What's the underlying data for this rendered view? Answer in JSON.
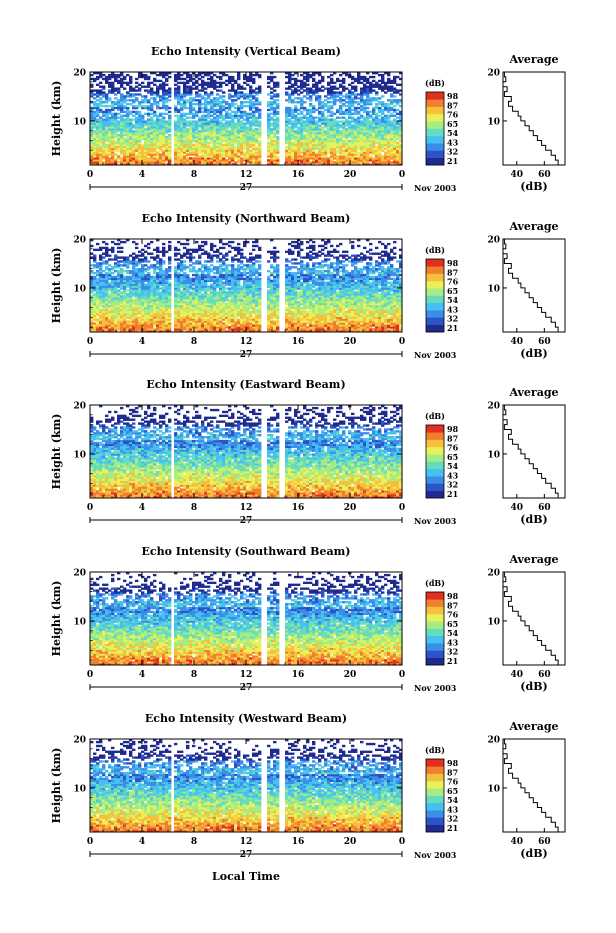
{
  "chart_data": [
    {
      "type": "heatmap",
      "title": "Echo Intensity (Vertical Beam)",
      "ylabel": "Height (km)",
      "y_ticks": [
        "20",
        "10"
      ],
      "x_ticks": [
        "0",
        "4",
        "8",
        "12",
        "16",
        "20",
        "0"
      ],
      "date_label": "27",
      "month_label": "Nov 2003",
      "colorbar": {
        "title": "(dB)",
        "labels": [
          "98",
          "87",
          "76",
          "65",
          "54",
          "43",
          "32",
          "21"
        ]
      },
      "profile": {
        "title": "Average",
        "y_ticks": [
          "20",
          "10"
        ],
        "x_ticks": [
          "40",
          "60"
        ],
        "xlabel": "(dB)"
      }
    },
    {
      "type": "heatmap",
      "title": "Echo Intensity (Northward Beam)",
      "ylabel": "Height (km)",
      "y_ticks": [
        "20",
        "10"
      ],
      "x_ticks": [
        "0",
        "4",
        "8",
        "12",
        "16",
        "20",
        "0"
      ],
      "date_label": "27",
      "month_label": "Nov 2003",
      "colorbar": {
        "title": "(dB)",
        "labels": [
          "98",
          "87",
          "76",
          "65",
          "54",
          "43",
          "32",
          "21"
        ]
      },
      "profile": {
        "title": "Average",
        "y_ticks": [
          "20",
          "10"
        ],
        "x_ticks": [
          "40",
          "60"
        ],
        "xlabel": "(dB)"
      }
    },
    {
      "type": "heatmap",
      "title": "Echo Intensity (Eastward Beam)",
      "ylabel": "Height (km)",
      "y_ticks": [
        "20",
        "10"
      ],
      "x_ticks": [
        "0",
        "4",
        "8",
        "12",
        "16",
        "20",
        "0"
      ],
      "date_label": "27",
      "month_label": "Nov 2003",
      "colorbar": {
        "title": "(dB)",
        "labels": [
          "98",
          "87",
          "76",
          "65",
          "54",
          "43",
          "32",
          "21"
        ]
      },
      "profile": {
        "title": "Average",
        "y_ticks": [
          "20",
          "10"
        ],
        "x_ticks": [
          "40",
          "60"
        ],
        "xlabel": "(dB)"
      }
    },
    {
      "type": "heatmap",
      "title": "Echo Intensity (Southward Beam)",
      "ylabel": "Height (km)",
      "y_ticks": [
        "20",
        "10"
      ],
      "x_ticks": [
        "0",
        "4",
        "8",
        "12",
        "16",
        "20",
        "0"
      ],
      "date_label": "27",
      "month_label": "Nov 2003",
      "colorbar": {
        "title": "(dB)",
        "labels": [
          "98",
          "87",
          "76",
          "65",
          "54",
          "43",
          "32",
          "21"
        ]
      },
      "profile": {
        "title": "Average",
        "y_ticks": [
          "20",
          "10"
        ],
        "x_ticks": [
          "40",
          "60"
        ],
        "xlabel": "(dB)"
      }
    },
    {
      "type": "heatmap",
      "title": "Echo Intensity (Westward Beam)",
      "ylabel": "Height (km)",
      "y_ticks": [
        "20",
        "10"
      ],
      "x_ticks": [
        "0",
        "4",
        "8",
        "12",
        "16",
        "20",
        "0"
      ],
      "date_label": "27",
      "month_label": "Nov 2003",
      "colorbar": {
        "title": "(dB)",
        "labels": [
          "98",
          "87",
          "76",
          "65",
          "54",
          "43",
          "32",
          "21"
        ]
      },
      "profile": {
        "title": "Average",
        "y_ticks": [
          "20",
          "10"
        ],
        "x_ticks": [
          "40",
          "60"
        ],
        "xlabel": "(dB)"
      }
    }
  ],
  "xlabel": "Local Time",
  "height_range_km": [
    1,
    20
  ],
  "time_range_h": [
    0,
    24
  ],
  "data_gaps_h": [
    [
      6.2,
      6.45
    ],
    [
      13.1,
      13.55
    ],
    [
      14.6,
      15.05
    ]
  ],
  "profile_db_range": [
    30,
    75
  ],
  "average_profile": {
    "height_km": [
      1.5,
      2.5,
      3.5,
      4.5,
      5.5,
      6.5,
      7.5,
      8.5,
      9.5,
      10.5,
      11.5,
      12.5,
      13.5,
      14.5,
      15.5,
      16.5,
      17.5,
      18.5,
      19.5
    ],
    "db": [
      70,
      68,
      65,
      61,
      58,
      55,
      52,
      49,
      46,
      43,
      41,
      37,
      34,
      36,
      31,
      33,
      30,
      32,
      31
    ]
  },
  "colormap": [
    "#1f2a8e",
    "#2b54c8",
    "#3a8ee8",
    "#46c0f0",
    "#64dcc0",
    "#a6ec82",
    "#e8f05a",
    "#f6c03c",
    "#f08030",
    "#e03020"
  ]
}
